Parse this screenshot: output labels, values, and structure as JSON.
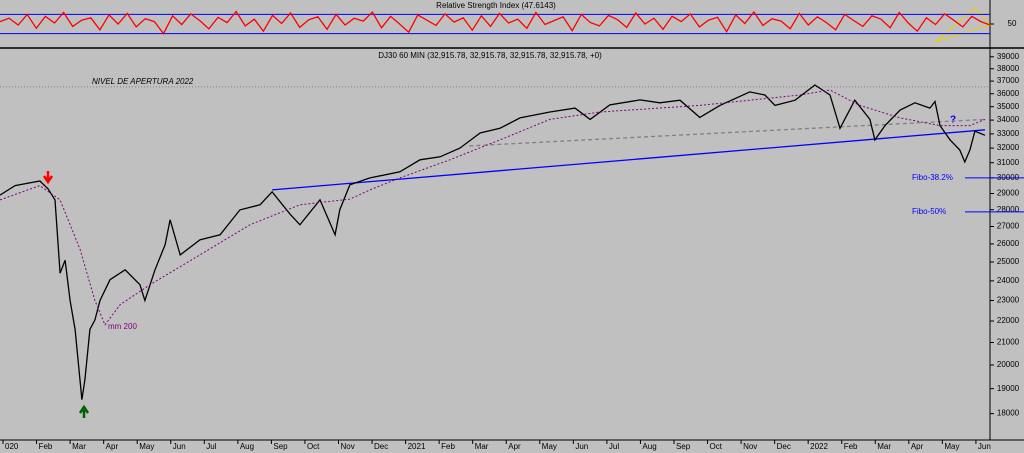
{
  "chart_data": [
    {
      "type": "line",
      "title": "Relative Strength Index (47.6143)",
      "color": "#ff0000",
      "values": [
        55,
        62,
        48,
        70,
        41,
        66,
        52,
        74,
        45,
        58,
        63,
        38,
        69,
        50,
        72,
        44,
        61,
        55,
        30,
        67,
        49,
        71,
        57,
        40,
        64,
        53,
        76,
        46,
        60,
        35,
        68,
        51,
        73,
        43,
        59,
        65,
        39,
        70,
        48,
        62,
        56,
        75,
        42,
        66,
        50,
        33,
        69,
        58,
        47,
        71,
        54,
        63,
        37,
        67,
        45,
        72,
        52,
        60,
        41,
        74,
        49,
        57,
        65,
        36,
        70,
        53,
        46,
        68,
        59,
        43,
        73,
        50,
        62,
        39,
        66,
        55,
        71,
        44,
        58,
        64,
        34,
        69,
        51,
        75,
        47,
        61,
        56,
        40,
        72,
        48,
        65,
        53,
        38,
        70,
        57,
        45,
        67,
        60,
        42,
        74,
        52,
        35,
        63,
        49,
        71,
        58,
        44,
        66,
        55,
        48
      ],
      "ylim": [
        0,
        100
      ],
      "yticks": [
        50
      ],
      "bands": [
        30,
        70
      ],
      "band_color": "#0000ff"
    },
    {
      "type": "line",
      "title": "DJ30 60 MIN (32,915.78, 32,915.78, 32,915.78, 32,915.78, +0)",
      "log_scale": true,
      "xlim": [
        -0.09,
        29.42
      ],
      "ylim": [
        17000,
        39750
      ],
      "yticks": [
        18000,
        19000,
        20000,
        21000,
        22000,
        23000,
        24000,
        25000,
        26000,
        27000,
        28000,
        29000,
        30000,
        31000,
        32000,
        33000,
        34000,
        35000,
        36000,
        37000,
        38000,
        39000
      ],
      "xticks": [
        {
          "value": 0,
          "label": "020"
        },
        {
          "value": 1,
          "label": "Feb"
        },
        {
          "value": 2,
          "label": "Mar"
        },
        {
          "value": 3,
          "label": "Apr"
        },
        {
          "value": 4,
          "label": "May"
        },
        {
          "value": 5,
          "label": "Jun"
        },
        {
          "value": 6,
          "label": "Jul"
        },
        {
          "value": 7,
          "label": "Aug"
        },
        {
          "value": 8,
          "label": "Sep"
        },
        {
          "value": 9,
          "label": "Oct"
        },
        {
          "value": 10,
          "label": "Nov"
        },
        {
          "value": 11,
          "label": "Dec"
        },
        {
          "value": 12,
          "label": "2021"
        },
        {
          "value": 13,
          "label": "Feb"
        },
        {
          "value": 14,
          "label": "Mar"
        },
        {
          "value": 15,
          "label": "Apr"
        },
        {
          "value": 16,
          "label": "May"
        },
        {
          "value": 17,
          "label": "Jun"
        },
        {
          "value": 18,
          "label": "Jul"
        },
        {
          "value": 19,
          "label": "Aug"
        },
        {
          "value": 20,
          "label": "Sep"
        },
        {
          "value": 21,
          "label": "Oct"
        },
        {
          "value": 22,
          "label": "Nov"
        },
        {
          "value": 23,
          "label": "Dec"
        },
        {
          "value": 24,
          "label": "2022"
        },
        {
          "value": 25,
          "label": "Feb"
        },
        {
          "value": 26,
          "label": "Mar"
        },
        {
          "value": 27,
          "label": "Apr"
        },
        {
          "value": 28,
          "label": "May"
        },
        {
          "value": 29,
          "label": "Jun"
        }
      ],
      "series": [
        {
          "color": "#000000",
          "x": [
            -0.09,
            0.36,
            1.1,
            1.34,
            1.55,
            1.7,
            1.85,
            2.0,
            2.15,
            2.35,
            2.44,
            2.59,
            2.74,
            2.89,
            3.19,
            3.64,
            4.08,
            4.23,
            4.53,
            4.83,
            4.98,
            5.28,
            5.87,
            6.47,
            7.06,
            7.66,
            8.02,
            8.55,
            8.85,
            9.45,
            9.9,
            10.04,
            10.34,
            10.94,
            11.83,
            12.43,
            13.03,
            13.62,
            14.22,
            14.81,
            15.41,
            16.3,
            17.05,
            17.5,
            18.09,
            18.99,
            19.58,
            20.18,
            20.77,
            21.37,
            22.26,
            22.71,
            23.01,
            23.61,
            24.2,
            24.65,
            24.95,
            25.39,
            25.84,
            25.99,
            26.29,
            26.74,
            27.18,
            27.63,
            27.78,
            27.93,
            28.23,
            28.52,
            28.67,
            28.82,
            28.97,
            29.27
          ],
          "values": [
            28900,
            29500,
            29800,
            29300,
            28600,
            24400,
            25100,
            23000,
            21600,
            18550,
            19370,
            21600,
            22050,
            23000,
            24060,
            24580,
            23800,
            23000,
            24580,
            25950,
            27400,
            25390,
            26230,
            26520,
            27990,
            28300,
            29100,
            27750,
            27100,
            28600,
            26520,
            28000,
            29550,
            30000,
            30400,
            31200,
            31400,
            32000,
            33060,
            33400,
            34160,
            34600,
            34900,
            34050,
            35140,
            35520,
            35300,
            35500,
            34200,
            35100,
            36140,
            35900,
            35100,
            35500,
            36690,
            35900,
            33400,
            35500,
            34050,
            32570,
            33600,
            34750,
            35300,
            34900,
            35400,
            33600,
            32570,
            31870,
            31050,
            31870,
            33200,
            32900
          ]
        },
        {
          "color": "#800080",
          "dashed": true,
          "x": [
            -0.09,
            1.1,
            1.7,
            2.3,
            2.74,
            3.04,
            3.49,
            4.38,
            5.87,
            7.36,
            8.85,
            10.34,
            10.94,
            11.83,
            13.32,
            14.81,
            16.3,
            17.79,
            20.77,
            22.26,
            23.76,
            24.65,
            25.54,
            26.74,
            27.93,
            28.82,
            29.27
          ],
          "values": [
            28600,
            29500,
            28600,
            25670,
            23000,
            21820,
            22790,
            23800,
            25390,
            27100,
            28300,
            28650,
            29230,
            30000,
            31200,
            32570,
            34050,
            34600,
            35100,
            35500,
            35900,
            36290,
            35100,
            34160,
            33600,
            33600,
            34050
          ]
        }
      ],
      "trendlines": [
        {
          "color": "#0000ff",
          "x": [
            8.02,
            29.27
          ],
          "values": [
            29230,
            33290
          ]
        },
        {
          "color": "#808080",
          "dashed": true,
          "x": [
            13.9,
            29.27
          ],
          "values": [
            32150,
            34050
          ]
        }
      ],
      "levels": [
        {
          "label": "NIVEL DE APERTURA 2022",
          "value": 36540,
          "color": "#808080"
        },
        {
          "label": "Fibo-38.2%",
          "value": 30000,
          "color": "#0000ff"
        },
        {
          "label": "Fibo-50%",
          "value": 27870,
          "color": "#0000ff"
        }
      ],
      "annotations": [
        "mm 200",
        "?"
      ]
    }
  ]
}
